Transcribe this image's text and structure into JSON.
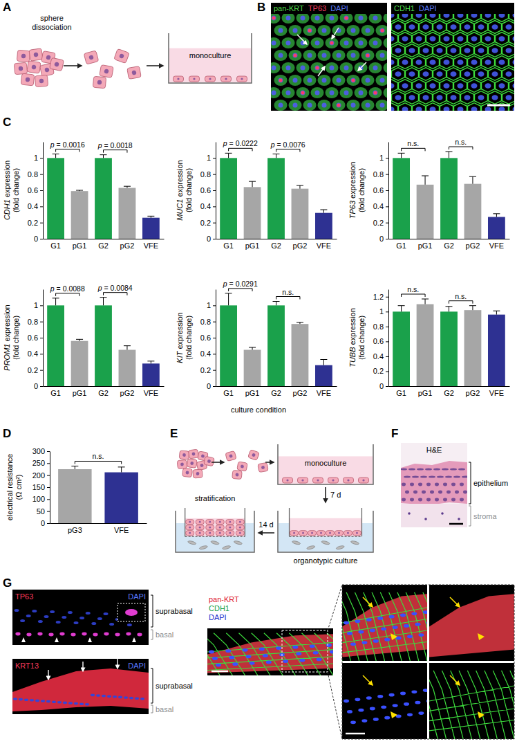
{
  "chart_data": [
    {
      "type": "bar",
      "y_label": "CDH1 expression (fold change)",
      "categories": [
        "G1",
        "pG1",
        "G2",
        "pG2",
        "VFE"
      ],
      "values": [
        1,
        0.59,
        1,
        0.63,
        0.26
      ],
      "errors": [
        0.05,
        0.01,
        0.04,
        0.02,
        0.02
      ],
      "colors": [
        "#1aa14b",
        "#a6a6a6",
        "#1aa14b",
        "#a6a6a6",
        "#2e3192"
      ],
      "ylim": [
        0,
        1.2
      ],
      "yticks": [
        0,
        0.2,
        0.4,
        0.6,
        0.8,
        1
      ],
      "annotations": [
        {
          "label": "p = 0.0016",
          "from": "G1",
          "to": "pG1"
        },
        {
          "label": "p = 0.0018",
          "from": "G2",
          "to": "pG2"
        }
      ]
    },
    {
      "type": "bar",
      "y_label": "MUC1 expression (fold change)",
      "categories": [
        "G1",
        "pG1",
        "G2",
        "pG2",
        "VFE"
      ],
      "values": [
        1,
        0.64,
        1,
        0.62,
        0.32
      ],
      "errors": [
        0.06,
        0.07,
        0.05,
        0.04,
        0.04
      ],
      "colors": [
        "#1aa14b",
        "#a6a6a6",
        "#1aa14b",
        "#a6a6a6",
        "#2e3192"
      ],
      "ylim": [
        0,
        1.2
      ],
      "yticks": [
        0,
        0.2,
        0.4,
        0.6,
        0.8,
        1
      ],
      "annotations": [
        {
          "label": "p = 0.0222",
          "from": "G1",
          "to": "pG1"
        },
        {
          "label": "p = 0.0076",
          "from": "G2",
          "to": "pG2"
        }
      ]
    },
    {
      "type": "bar",
      "y_label": "TP63 expression (fold change)",
      "categories": [
        "G1",
        "pG1",
        "G2",
        "pG2",
        "VFE"
      ],
      "values": [
        1,
        0.67,
        1,
        0.68,
        0.27
      ],
      "errors": [
        0.06,
        0.11,
        0.08,
        0.09,
        0.04
      ],
      "colors": [
        "#1aa14b",
        "#a6a6a6",
        "#1aa14b",
        "#a6a6a6",
        "#2e3192"
      ],
      "ylim": [
        0,
        1.2
      ],
      "yticks": [
        0,
        0.2,
        0.4,
        0.6,
        0.8,
        1
      ],
      "annotations": [
        {
          "label": "n.s.",
          "from": "G1",
          "to": "pG1"
        },
        {
          "label": "n.s.",
          "from": "G2",
          "to": "pG2"
        }
      ]
    },
    {
      "type": "bar",
      "y_label": "PROM1 expression (fold change)",
      "categories": [
        "G1",
        "pG1",
        "G2",
        "pG2",
        "VFE"
      ],
      "values": [
        1,
        0.56,
        1,
        0.45,
        0.28
      ],
      "errors": [
        0.09,
        0.02,
        0.1,
        0.05,
        0.03
      ],
      "colors": [
        "#1aa14b",
        "#a6a6a6",
        "#1aa14b",
        "#a6a6a6",
        "#2e3192"
      ],
      "ylim": [
        0,
        1.2
      ],
      "yticks": [
        0,
        0.2,
        0.4,
        0.6,
        0.8,
        1
      ],
      "annotations": [
        {
          "label": "p = 0.0088",
          "from": "G1",
          "to": "pG1"
        },
        {
          "label": "p = 0.0084",
          "from": "G2",
          "to": "pG2"
        }
      ]
    },
    {
      "type": "bar",
      "y_label": "KIT expression (fold change)",
      "categories": [
        "G1",
        "pG1",
        "G2",
        "pG2",
        "VFE"
      ],
      "values": [
        1,
        0.45,
        1,
        0.77,
        0.26
      ],
      "errors": [
        0.15,
        0.03,
        0.05,
        0.02,
        0.07
      ],
      "colors": [
        "#1aa14b",
        "#a6a6a6",
        "#1aa14b",
        "#a6a6a6",
        "#2e3192"
      ],
      "ylim": [
        0,
        1.2
      ],
      "yticks": [
        0,
        0.2,
        0.4,
        0.6,
        0.8,
        1
      ],
      "annotations": [
        {
          "label": "p = 0.0291",
          "from": "G1",
          "to": "pG1"
        },
        {
          "label": "n.s.",
          "from": "G2",
          "to": "pG2"
        }
      ]
    },
    {
      "type": "bar",
      "y_label": "TUBB expression (fold change)",
      "categories": [
        "G1",
        "pG1",
        "G2",
        "pG2",
        "VFE"
      ],
      "values": [
        1,
        1.1,
        1,
        1.02,
        0.96
      ],
      "errors": [
        0.08,
        0.07,
        0.07,
        0.06,
        0.05
      ],
      "colors": [
        "#1aa14b",
        "#a6a6a6",
        "#1aa14b",
        "#a6a6a6",
        "#2e3192"
      ],
      "ylim": [
        0,
        1.3
      ],
      "yticks": [
        0,
        0.2,
        0.4,
        0.6,
        0.8,
        1,
        1.2
      ],
      "annotations": [
        {
          "label": "n.s.",
          "from": "G1",
          "to": "pG1"
        },
        {
          "label": "n.s.",
          "from": "G2",
          "to": "pG2"
        }
      ]
    },
    {
      "type": "bar",
      "y_label": "electrical resistance (Ω cm²)",
      "categories": [
        "pG3",
        "VFE"
      ],
      "values": [
        225,
        212
      ],
      "errors": [
        13,
        22
      ],
      "colors": [
        "#a6a6a6",
        "#2e3192"
      ],
      "ylim": [
        0,
        300
      ],
      "yticks": [
        0,
        50,
        100,
        150,
        200,
        250,
        300
      ],
      "annotations": [
        {
          "label": "n.s.",
          "from": "pG3",
          "to": "VFE"
        }
      ]
    }
  ],
  "figure": {
    "panel_letters": [
      "A",
      "B",
      "C",
      "D",
      "E",
      "F",
      "G"
    ],
    "panel_a": {
      "step_label": "sphere dissociation",
      "well_label": "monoculture"
    },
    "panel_b": {
      "left_stains": [
        {
          "text": "pan-KRT",
          "color": "#4bdc4b"
        },
        {
          "text": "TP63",
          "color": "#ff3b5c"
        },
        {
          "text": "DAPI",
          "color": "#5b7bff"
        }
      ],
      "right_stains": [
        {
          "text": "CDH1",
          "color": "#4bdc4b"
        },
        {
          "text": "DAPI",
          "color": "#5b7bff"
        }
      ]
    },
    "panel_c_x_label": "culture condition",
    "panel_e": {
      "well_1": "monoculture",
      "time_1": "7 d",
      "well_2": "organotypic culture",
      "time_2": "14 d",
      "well_3": "stratification"
    },
    "panel_f": {
      "title": "H&E",
      "layers": [
        "epithelium",
        "stroma"
      ]
    },
    "panel_g": {
      "tp63_stains": [
        {
          "text": "TP63",
          "color": "#ff3b5c"
        },
        {
          "text": "DAPI",
          "color": "#5b7bff"
        }
      ],
      "krt13_stains": [
        {
          "text": "KRT13",
          "color": "#ff3b5c"
        },
        {
          "text": "DAPI",
          "color": "#5b7bff"
        }
      ],
      "merge_stains": [
        {
          "text": "pan-KRT",
          "color": "#e0202e"
        },
        {
          "text": "CDH1",
          "color": "#1aa14b"
        },
        {
          "text": "DAPI",
          "color": "#2233cc"
        }
      ],
      "layers": [
        "suprabasal",
        "basal"
      ]
    }
  }
}
